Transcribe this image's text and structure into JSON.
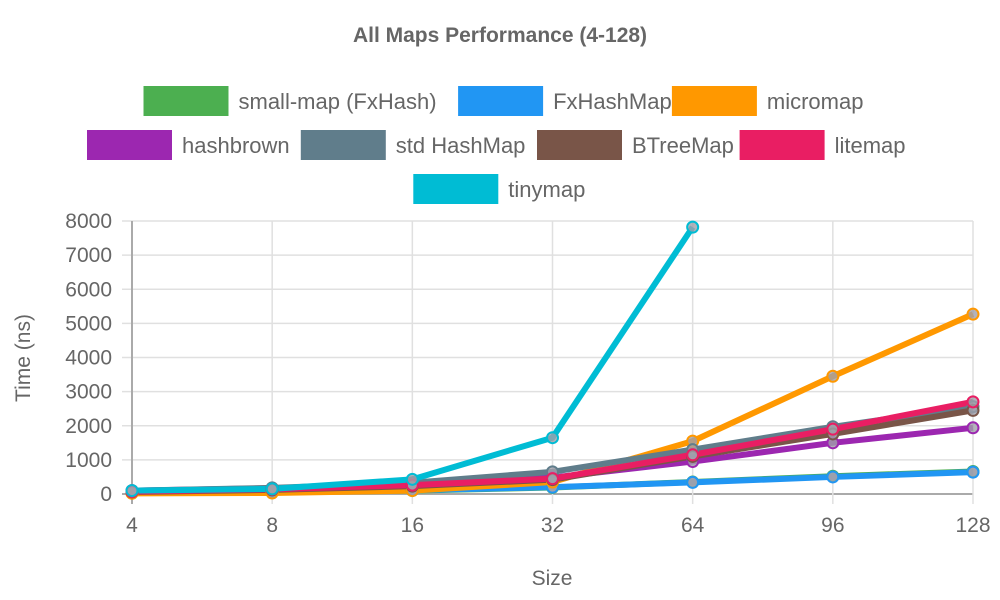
{
  "chart_data": {
    "type": "line",
    "title": "All Maps Performance (4-128)",
    "xlabel": "Size",
    "ylabel": "Time (ns)",
    "categories": [
      "4",
      "8",
      "16",
      "32",
      "64",
      "96",
      "128"
    ],
    "ylim": [
      0,
      8000
    ],
    "yticks": [
      0,
      1000,
      2000,
      3000,
      4000,
      5000,
      6000,
      7000,
      8000
    ],
    "grid": true,
    "legend_position": "top",
    "series": [
      {
        "name": "small-map (FxHash)",
        "color": "#4caf50",
        "values": [
          30,
          50,
          100,
          190,
          350,
          520,
          660
        ]
      },
      {
        "name": "FxHashMap",
        "color": "#2196f3",
        "values": [
          40,
          60,
          110,
          200,
          340,
          500,
          640
        ]
      },
      {
        "name": "micromap",
        "color": "#ff9800",
        "values": [
          20,
          30,
          100,
          350,
          1550,
          3450,
          5270
        ]
      },
      {
        "name": "hashbrown",
        "color": "#9c27b0",
        "values": [
          100,
          170,
          280,
          480,
          950,
          1500,
          1940
        ]
      },
      {
        "name": "std HashMap",
        "color": "#607d8b",
        "values": [
          100,
          180,
          330,
          650,
          1300,
          1970,
          2560
        ]
      },
      {
        "name": "BTreeMap",
        "color": "#795548",
        "values": [
          60,
          120,
          230,
          420,
          1100,
          1760,
          2450
        ]
      },
      {
        "name": "litemap",
        "color": "#e91e63",
        "values": [
          70,
          140,
          260,
          450,
          1150,
          1900,
          2700
        ]
      },
      {
        "name": "tinymap",
        "color": "#00bcd4",
        "values": [
          100,
          150,
          430,
          1650,
          7820,
          null,
          null
        ]
      }
    ]
  }
}
